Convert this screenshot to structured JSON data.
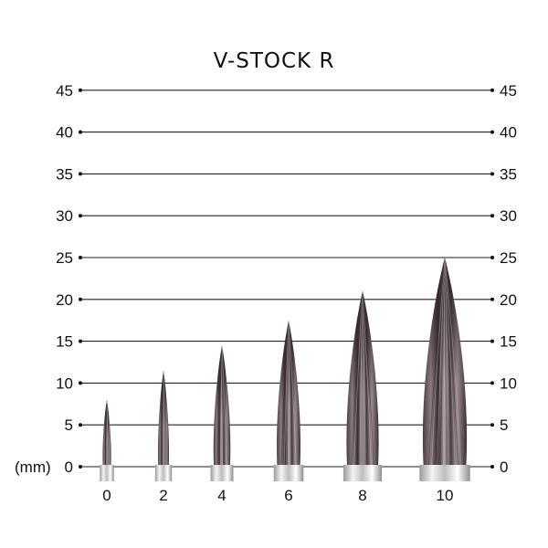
{
  "chart_data": {
    "type": "bar",
    "title": "V-STOCK R",
    "ylabel": "(mm)",
    "xlabel": "",
    "ylim": [
      0,
      45
    ],
    "y_ticks": [
      "0",
      "5",
      "10",
      "15",
      "20",
      "25",
      "30",
      "35",
      "40",
      "45"
    ],
    "categories": [
      "0",
      "2",
      "4",
      "6",
      "8",
      "10"
    ],
    "values": [
      8,
      11.5,
      14.5,
      17.5,
      21,
      25
    ],
    "grid": true,
    "colors": {
      "tip": "#3b2f35",
      "body": "#6b5a62",
      "highlight": "#d9cfd3",
      "ferrule": "#c8c8c8",
      "grid": "#222222"
    }
  }
}
